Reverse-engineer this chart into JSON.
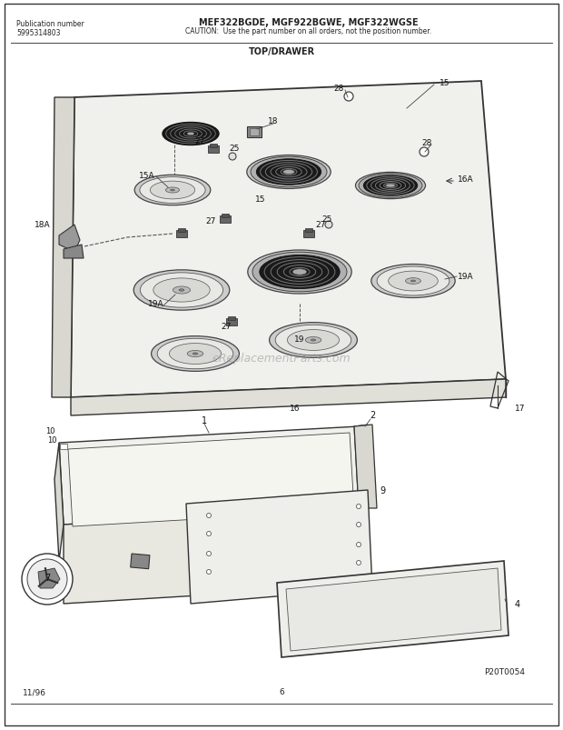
{
  "bg_color": "#ffffff",
  "border_color": "#555555",
  "title_main": "MEF322BGDE, MGF922BGWE, MGF322WGSE",
  "title_caution": "CAUTION:  Use the part number on all orders, not the position number.",
  "pub_number_label": "Publication number",
  "pub_number": "5995314803",
  "section_title": "TOP/DRAWER",
  "bottom_left": "11/96",
  "bottom_center": "6",
  "bottom_right": "P20T0054",
  "watermark": "eReplacementParts.com",
  "figsize": [
    6.2,
    8.04
  ],
  "dpi": 100
}
